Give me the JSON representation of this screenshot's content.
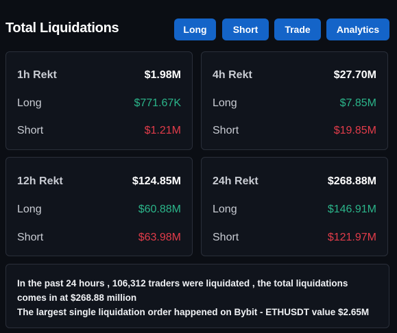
{
  "header": {
    "title": "Total Liquidations",
    "buttons": [
      "Long",
      "Short",
      "Trade",
      "Analytics"
    ]
  },
  "cards": [
    {
      "period": "1h Rekt",
      "total": "$1.98M",
      "long_label": "Long",
      "long": "$771.67K",
      "short_label": "Short",
      "short": "$1.21M"
    },
    {
      "period": "4h Rekt",
      "total": "$27.70M",
      "long_label": "Long",
      "long": "$7.85M",
      "short_label": "Short",
      "short": "$19.85M"
    },
    {
      "period": "12h Rekt",
      "total": "$124.85M",
      "long_label": "Long",
      "long": "$60.88M",
      "short_label": "Short",
      "short": "$63.98M"
    },
    {
      "period": "24h Rekt",
      "total": "$268.88M",
      "long_label": "Long",
      "long": "$146.91M",
      "short_label": "Short",
      "short": "$121.97M"
    }
  ],
  "summary": {
    "line1": "In the past 24 hours , 106,312 traders were liquidated , the total liquidations comes in at $268.88 million",
    "line2": "The largest single liquidation order happened on Bybit - ETHUSDT value $2.65M"
  },
  "colors": {
    "long": "#2bb58a",
    "short": "#e23c4a",
    "button": "#1464c8"
  }
}
